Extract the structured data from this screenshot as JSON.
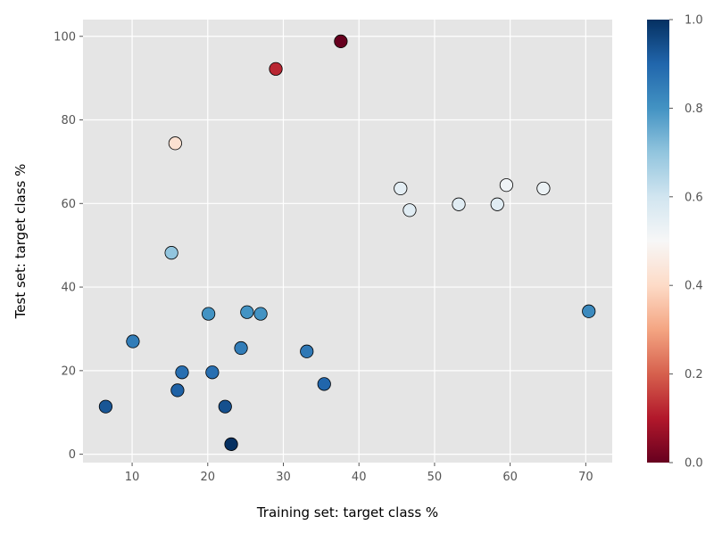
{
  "chart_data": {
    "type": "scatter",
    "xlabel": "Training set: target class %",
    "ylabel": "Test set: target class %",
    "xlim": [
      3.5,
      73.5
    ],
    "ylim": [
      -2,
      104
    ],
    "xticks": [
      10,
      20,
      30,
      40,
      50,
      60,
      70
    ],
    "yticks": [
      0,
      20,
      40,
      60,
      80,
      100
    ],
    "grid": true,
    "colormap": "RdBu",
    "colorbar": {
      "range": [
        0.0,
        1.0
      ],
      "ticks": [
        "0.0",
        "0.2",
        "0.4",
        "0.6",
        "0.8",
        "1.0"
      ]
    },
    "points": [
      {
        "x": 37.6,
        "y": 98.8,
        "c": 0.0
      },
      {
        "x": 29.0,
        "y": 92.2,
        "c": 0.12
      },
      {
        "x": 15.7,
        "y": 74.4,
        "c": 0.42
      },
      {
        "x": 15.2,
        "y": 48.2,
        "c": 0.7
      },
      {
        "x": 45.5,
        "y": 63.6,
        "c": 0.55
      },
      {
        "x": 46.7,
        "y": 58.4,
        "c": 0.56
      },
      {
        "x": 53.2,
        "y": 59.8,
        "c": 0.56
      },
      {
        "x": 58.3,
        "y": 59.8,
        "c": 0.56
      },
      {
        "x": 59.5,
        "y": 64.4,
        "c": 0.52
      },
      {
        "x": 64.4,
        "y": 63.6,
        "c": 0.53
      },
      {
        "x": 70.4,
        "y": 34.2,
        "c": 0.82
      },
      {
        "x": 6.5,
        "y": 11.4,
        "c": 0.93
      },
      {
        "x": 10.1,
        "y": 27.0,
        "c": 0.85
      },
      {
        "x": 16.0,
        "y": 15.3,
        "c": 0.91
      },
      {
        "x": 16.6,
        "y": 19.6,
        "c": 0.88
      },
      {
        "x": 20.1,
        "y": 33.6,
        "c": 0.8
      },
      {
        "x": 20.6,
        "y": 19.6,
        "c": 0.88
      },
      {
        "x": 22.3,
        "y": 11.4,
        "c": 0.94
      },
      {
        "x": 23.1,
        "y": 2.4,
        "c": 1.0
      },
      {
        "x": 24.4,
        "y": 25.4,
        "c": 0.85
      },
      {
        "x": 25.2,
        "y": 34.0,
        "c": 0.8
      },
      {
        "x": 27.0,
        "y": 33.6,
        "c": 0.8
      },
      {
        "x": 33.1,
        "y": 24.6,
        "c": 0.86
      },
      {
        "x": 35.4,
        "y": 16.8,
        "c": 0.9
      }
    ]
  }
}
